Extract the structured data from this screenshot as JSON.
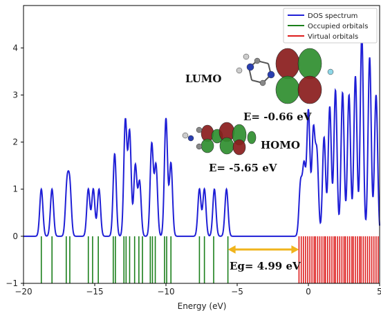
{
  "chart_data": {
    "type": "line",
    "xlabel": "Energy (eV)",
    "ylabel": "",
    "xlim": [
      -20,
      5
    ],
    "ylim": [
      -1,
      4.9
    ],
    "x_ticks": [
      -20,
      -15,
      -10,
      -5,
      0,
      5
    ],
    "y_ticks": [
      -1,
      0,
      1,
      2,
      3,
      4
    ],
    "legend_position": "top-right",
    "series": [
      {
        "name": "DOS spectrum",
        "color": "#1f1fd6"
      },
      {
        "name": "Occupied orbitals",
        "color": "#1a7f1a"
      },
      {
        "name": "Virtual orbitals",
        "color": "#dd1c1c"
      }
    ],
    "dos_peaks": [
      [
        -18.75,
        1.0
      ],
      [
        -18.0,
        1.0
      ],
      [
        -16.95,
        1.05
      ],
      [
        -16.75,
        1.05
      ],
      [
        -15.45,
        1.0
      ],
      [
        -15.1,
        1.0
      ],
      [
        -14.7,
        1.0
      ],
      [
        -13.6,
        1.75
      ],
      [
        -12.85,
        2.45
      ],
      [
        -12.55,
        2.2
      ],
      [
        -12.15,
        1.5
      ],
      [
        -11.85,
        1.15
      ],
      [
        -11.0,
        1.95
      ],
      [
        -10.7,
        1.5
      ],
      [
        -10.0,
        2.5
      ],
      [
        -9.65,
        1.55
      ],
      [
        -7.65,
        1.0
      ],
      [
        -7.3,
        1.0
      ],
      [
        -6.6,
        1.0
      ],
      [
        -5.75,
        1.0
      ],
      [
        -0.55,
        1.1
      ],
      [
        -0.3,
        1.45
      ],
      [
        0.0,
        2.65
      ],
      [
        0.35,
        2.2
      ],
      [
        0.6,
        1.7
      ],
      [
        1.1,
        2.1
      ],
      [
        1.5,
        2.75
      ],
      [
        1.9,
        3.1
      ],
      [
        2.4,
        3.05
      ],
      [
        2.85,
        3.0
      ],
      [
        3.3,
        3.4
      ],
      [
        3.75,
        4.3
      ],
      [
        4.3,
        3.8
      ],
      [
        4.75,
        3.0
      ]
    ],
    "occupied_orbitals": [
      -18.75,
      -18.0,
      -17.0,
      -16.75,
      -15.45,
      -15.15,
      -14.75,
      -13.7,
      -13.55,
      -12.95,
      -12.8,
      -12.55,
      -12.2,
      -11.9,
      -11.65,
      -11.1,
      -10.95,
      -10.75,
      -10.1,
      -9.95,
      -9.65,
      -7.65,
      -7.3,
      -6.65,
      -5.65
    ],
    "virtual_orbitals": [
      -0.66,
      -0.5,
      -0.35,
      -0.2,
      -0.05,
      0.1,
      0.25,
      0.4,
      0.5,
      0.65,
      0.8,
      0.95,
      1.1,
      1.2,
      1.35,
      1.5,
      1.65,
      1.8,
      1.9,
      2.05,
      2.2,
      2.35,
      2.5,
      2.6,
      2.75,
      2.9,
      3.05,
      3.15,
      3.3,
      3.45,
      3.6,
      3.7,
      3.85,
      4.0,
      4.15,
      4.3,
      4.45,
      4.6,
      4.75,
      4.9
    ],
    "gap_arrow": [
      -5.65,
      -0.66
    ],
    "annotations": {
      "lumo": "LUMO",
      "lumo_energy": "E= -0.66 eV",
      "homo": "HOMO",
      "homo_energy": "E= -5.65 eV",
      "gap": "Eg= 4.99 eV"
    }
  },
  "colors": {
    "dos": "#1f1fd6",
    "occupied": "#1a7f1a",
    "virtual": "#dd1c1c",
    "arrow": "#f0b41c",
    "orbital_green": "#2f8f2f",
    "orbital_red": "#8a1d1d"
  }
}
